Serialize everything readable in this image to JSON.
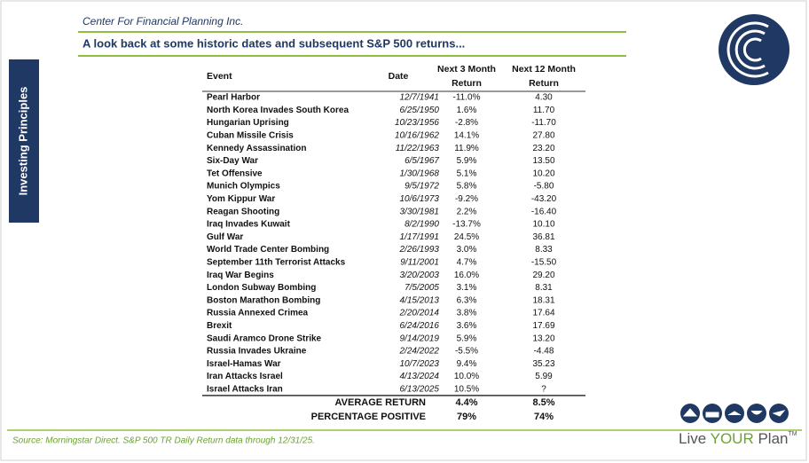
{
  "header": {
    "company": "Center For Financial Planning Inc.",
    "title": "A look back at some historic dates and subsequent S&P 500 returns..."
  },
  "sidebar": {
    "label": "Investing Principles"
  },
  "table": {
    "columns": [
      [
        "Event"
      ],
      [
        "Date"
      ],
      [
        "Next 3 Month",
        "Return"
      ],
      [
        "Next 12 Month",
        "Return"
      ]
    ],
    "rows": [
      [
        "Pearl Harbor",
        "12/7/1941",
        "-11.0%",
        "4.30"
      ],
      [
        "North Korea Invades South Korea",
        "6/25/1950",
        "1.6%",
        "11.70"
      ],
      [
        "Hungarian Uprising",
        "10/23/1956",
        "-2.8%",
        "-11.70"
      ],
      [
        "Cuban Missile Crisis",
        "10/16/1962",
        "14.1%",
        "27.80"
      ],
      [
        "Kennedy Assassination",
        "11/22/1963",
        "11.9%",
        "23.20"
      ],
      [
        "Six-Day War",
        "6/5/1967",
        "5.9%",
        "13.50"
      ],
      [
        "Tet Offensive",
        "1/30/1968",
        "5.1%",
        "10.20"
      ],
      [
        "Munich Olympics",
        "9/5/1972",
        "5.8%",
        "-5.80"
      ],
      [
        "Yom Kippur War",
        "10/6/1973",
        "-9.2%",
        "-43.20"
      ],
      [
        "Reagan Shooting",
        "3/30/1981",
        "2.2%",
        "-16.40"
      ],
      [
        "Iraq Invades Kuwait",
        "8/2/1990",
        "-13.7%",
        "10.10"
      ],
      [
        "Gulf War",
        "1/17/1991",
        "24.5%",
        "36.81"
      ],
      [
        "World Trade Center Bombing",
        "2/26/1993",
        "3.0%",
        "8.33"
      ],
      [
        "September 11th Terrorist Attacks",
        "9/11/2001",
        "4.7%",
        "-15.50"
      ],
      [
        "Iraq War Begins",
        "3/20/2003",
        "16.0%",
        "29.20"
      ],
      [
        "London Subway Bombing",
        "7/5/2005",
        "3.1%",
        "8.31"
      ],
      [
        "Boston Marathon Bombing",
        "4/15/2013",
        "6.3%",
        "18.31"
      ],
      [
        "Russia Annexed Crimea",
        "2/20/2014",
        "3.8%",
        "17.64"
      ],
      [
        "Brexit",
        "6/24/2016",
        "3.6%",
        "17.69"
      ],
      [
        "Saudi Aramco Drone Strike",
        "9/14/2019",
        "5.9%",
        "13.20"
      ],
      [
        "Russia Invades Ukraine",
        "2/24/2022",
        "-5.5%",
        "-4.48"
      ],
      [
        "Israel-Hamas War",
        "10/7/2023",
        "9.4%",
        "35.23"
      ],
      [
        "Iran Attacks Israel",
        "4/13/2024",
        "10.0%",
        "5.99"
      ],
      [
        "Israel Attacks Iran",
        "6/13/2025",
        "10.5%",
        "?"
      ]
    ],
    "summary": [
      [
        "AVERAGE RETURN",
        "4.4%",
        "8.5%"
      ],
      [
        "PERCENTAGE POSITIVE",
        "79%",
        "74%"
      ]
    ]
  },
  "footer": {
    "source": "Source: Morningstar Direct. S&P 500 TR Daily Return data through 12/31/25.",
    "brand": [
      "Live",
      "YOUR",
      "Plan"
    ],
    "trademark": "TM"
  }
}
